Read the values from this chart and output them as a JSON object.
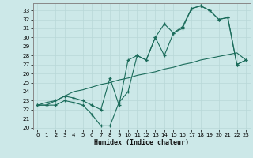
{
  "xlabel": "Humidex (Indice chaleur)",
  "xlim": [
    -0.5,
    23.5
  ],
  "ylim": [
    19.8,
    33.8
  ],
  "xticks": [
    0,
    1,
    2,
    3,
    4,
    5,
    6,
    7,
    8,
    9,
    10,
    11,
    12,
    13,
    14,
    15,
    16,
    17,
    18,
    19,
    20,
    21,
    22,
    23
  ],
  "yticks": [
    20,
    21,
    22,
    23,
    24,
    25,
    26,
    27,
    28,
    29,
    30,
    31,
    32,
    33
  ],
  "bg_color": "#cce8e8",
  "grid_color": "#aad4d4",
  "line_color": "#1a6b5a",
  "line_zigzag_x": [
    0,
    1,
    2,
    3,
    4,
    5,
    6,
    7,
    8,
    9,
    10,
    11,
    12,
    13,
    14,
    15,
    16,
    17,
    18,
    19,
    20,
    21,
    22,
    23
  ],
  "line_zigzag_y": [
    22.5,
    22.5,
    22.5,
    23.0,
    22.8,
    22.5,
    21.5,
    20.2,
    20.2,
    22.8,
    24.0,
    28.0,
    27.5,
    30.0,
    28.0,
    30.5,
    31.0,
    33.2,
    33.5,
    33.0,
    32.0,
    32.2,
    27.0,
    27.5
  ],
  "line_upper_x": [
    0,
    1,
    2,
    3,
    4,
    5,
    6,
    7,
    8,
    9,
    10,
    11,
    12,
    13,
    14,
    15,
    16,
    17,
    18,
    19,
    20,
    21,
    22,
    23
  ],
  "line_upper_y": [
    22.5,
    22.5,
    23.0,
    23.5,
    23.3,
    23.0,
    22.5,
    22.0,
    25.5,
    22.5,
    27.5,
    28.0,
    27.5,
    30.0,
    31.5,
    30.5,
    31.2,
    33.2,
    33.5,
    33.0,
    32.0,
    32.2,
    27.0,
    27.5
  ],
  "line_diag_x": [
    0,
    1,
    2,
    3,
    4,
    5,
    6,
    7,
    8,
    9,
    10,
    11,
    12,
    13,
    14,
    15,
    16,
    17,
    18,
    19,
    20,
    21,
    22,
    23
  ],
  "line_diag_y": [
    22.5,
    22.8,
    23.0,
    23.5,
    24.0,
    24.2,
    24.5,
    24.8,
    25.0,
    25.3,
    25.5,
    25.8,
    26.0,
    26.2,
    26.5,
    26.7,
    27.0,
    27.2,
    27.5,
    27.7,
    27.9,
    28.1,
    28.3,
    27.5
  ]
}
